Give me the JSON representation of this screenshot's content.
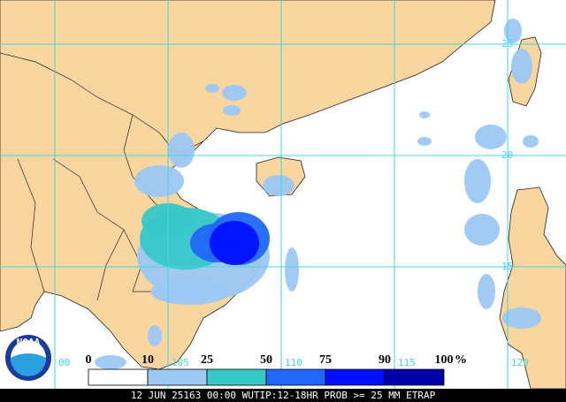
{
  "map": {
    "lat_labels": [
      "25",
      "20",
      "15"
    ],
    "lon_labels": [
      "00",
      "105",
      "110",
      "115",
      "120"
    ],
    "land_color": "#f9d5a0",
    "ocean_color": "#ffffff",
    "grid_color": "#40d8e0"
  },
  "legend": {
    "labels": [
      "0",
      "10",
      "25",
      "50",
      "75",
      "90",
      "100"
    ],
    "unit": "%",
    "colors": [
      "#ffffff",
      "#9cc8f4",
      "#38c8c8",
      "#2068f8",
      "#0010ff",
      "#0000a8"
    ]
  },
  "logo": "NOAA",
  "caption": "12 JUN 25163 00:00 WUTIP:12-18HR PROB >= 25 MM ETRAP"
}
